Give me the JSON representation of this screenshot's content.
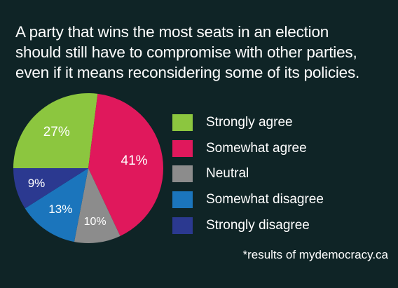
{
  "title_lines": [
    "A party that wins the most seats in an election",
    "should still have to compromise with other parties,",
    "even if it means reconsidering some of its policies."
  ],
  "source": "*results of mydemocracy.ca",
  "chart_data": {
    "type": "pie",
    "title": "A party that wins the most seats in an election should still have to compromise with other parties, even if it means reconsidering some of its policies.",
    "categories": [
      "Strongly agree",
      "Somewhat agree",
      "Neutral",
      "Somewhat disagree",
      "Strongly disagree"
    ],
    "values": [
      27,
      41,
      10,
      13,
      9
    ],
    "data_labels": [
      "27%",
      "41%",
      "10%",
      "13%",
      "9%"
    ],
    "colors": [
      "#8cc63f",
      "#e0185c",
      "#8c8c8c",
      "#1b75bc",
      "#2b3990"
    ],
    "legend_placement": "right"
  }
}
